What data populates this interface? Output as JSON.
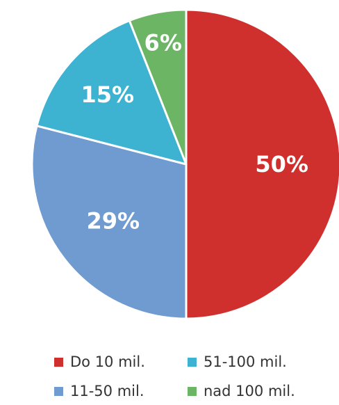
{
  "chart_data": {
    "type": "pie",
    "categories": [
      "Do 10 mil.",
      "11-50 mil.",
      "51-100 mil.",
      "nad 100 mil."
    ],
    "values": [
      50,
      29,
      15,
      6
    ],
    "value_labels": [
      "50%",
      "29%",
      "15%",
      "6%"
    ],
    "colors": [
      "#d0302d",
      "#6f9bd1",
      "#3db3d1",
      "#6bb564"
    ],
    "legend_position": "bottom",
    "start_angle": "12 o'clock",
    "direction": "clockwise"
  },
  "legend": {
    "items": [
      {
        "label": "Do 10 mil.",
        "color": "#d0302d"
      },
      {
        "label": "51-100 mil.",
        "color": "#3db3d1"
      },
      {
        "label": "11-50 mil.",
        "color": "#6f9bd1"
      },
      {
        "label": "nad 100 mil.",
        "color": "#6bb564"
      }
    ]
  }
}
